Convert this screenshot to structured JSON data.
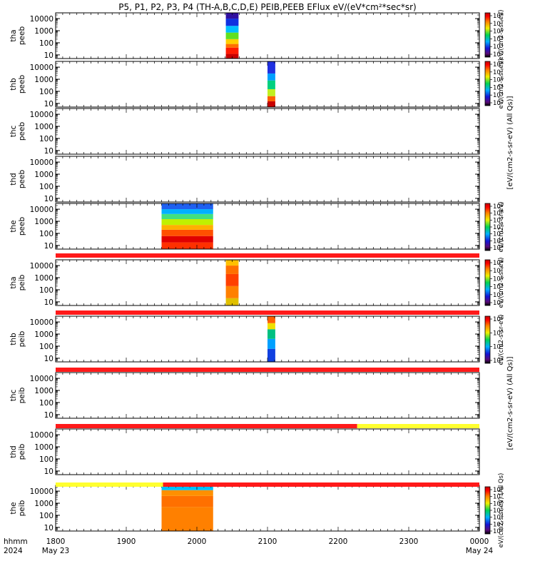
{
  "title": "P5, P1, P2, P3, P4 (TH-A,B,C,D,E) PEIB,PEEB EFlux eV/(eV*cm²*sec*sr)",
  "time_axis": {
    "row1_label": "hhmm",
    "row2_label": "2024",
    "ticks": [
      {
        "t": 1800,
        "label": "1800",
        "sub": "May 23"
      },
      {
        "t": 1900,
        "label": "1900",
        "sub": ""
      },
      {
        "t": 2000,
        "label": "2000",
        "sub": ""
      },
      {
        "t": 2100,
        "label": "2100",
        "sub": ""
      },
      {
        "t": 2200,
        "label": "2200",
        "sub": ""
      },
      {
        "t": 2300,
        "label": "2300",
        "sub": ""
      },
      {
        "t": 2400,
        "label": "0000",
        "sub": "May 24"
      }
    ]
  },
  "colorbars": [
    {
      "panel": "tha-peeb",
      "ticks": [
        "10^8",
        "10^7",
        "10^6",
        "10^5",
        "10^4",
        "10^3"
      ],
      "label": "eV/(cm2-s-sr-eV)"
    },
    {
      "panel": "thb-peeb",
      "ticks": [
        "10^8",
        "10^7",
        "10^6",
        "10^5",
        "10^4",
        "10^3"
      ],
      "label": "eV/(cm2-s-sr-eV)"
    },
    {
      "panel": "the-peeb",
      "ticks": [
        "10^9",
        "10^8",
        "10^7",
        "10^6",
        "10^5",
        "10^4",
        "10^3"
      ],
      "label": "eV/(cm2-s-sr-eV)"
    },
    {
      "panel": "tha-peib",
      "ticks": [
        "10^8",
        "10^7",
        "10^6",
        "10^5",
        "10^4",
        "10^3"
      ],
      "label": "eV/(cm2-s-sr-eV)"
    },
    {
      "panel": "thb-peib",
      "ticks": [
        "10^6",
        "10^5",
        "10^4",
        "10^3"
      ],
      "label": "eV/(cm2-s-sr-eV)"
    },
    {
      "panel": "the-peib",
      "ticks": [
        "10^8",
        "10^7",
        "10^6",
        "10^5",
        "10^4",
        "10^3",
        "10^2"
      ],
      "label": "eV/(cm2-s-sr-eV) (All Qs)"
    }
  ],
  "side_labels": [
    "[eV/(cm2-s-sr-eV) (All Qs)]",
    "[eV/(cm2-s-sr-eV) (All Qs)]"
  ],
  "flag_bars": [
    {
      "after_panel": "the-peeb",
      "segments": [
        {
          "from": 1800,
          "to": 2400,
          "color": "#ff1a1a"
        }
      ]
    },
    {
      "after_panel": "tha-peib",
      "segments": [
        {
          "from": 1800,
          "to": 2400,
          "color": "#ff1a1a"
        }
      ]
    },
    {
      "after_panel": "thb-peib",
      "segments": [
        {
          "from": 1800,
          "to": 2400,
          "color": "#ff1a1a"
        }
      ]
    },
    {
      "after_panel": "thc-peib",
      "segments": [
        {
          "from": 1800,
          "to": 2227,
          "color": "#ff1a1a"
        },
        {
          "from": 2227,
          "to": 2400,
          "color": "#ffff30"
        }
      ]
    },
    {
      "after_panel": "thd-peib",
      "segments": [
        {
          "from": 1800,
          "to": 1952,
          "color": "#ffff30"
        },
        {
          "from": 1952,
          "to": 2400,
          "color": "#ff1a1a"
        }
      ]
    }
  ],
  "chart_data": {
    "type": "heatmap",
    "title": "P5, P1, P2, P3, P4 (TH-A,B,C,D,E) PEIB,PEEB EFlux eV/(eV*cm²*sec*sr)",
    "x_range": [
      1800,
      2400
    ],
    "y_scale": "log",
    "y_tick_labels": [
      "10",
      "100",
      "1000",
      "10000"
    ],
    "panels": [
      {
        "probe": "tha",
        "instrument": "peeb",
        "label1": "tha",
        "label2": "peeb",
        "data_intervals": [
          {
            "from": 2041,
            "to": 2059
          }
        ],
        "profile": "electron-a"
      },
      {
        "probe": "thb",
        "instrument": "peeb",
        "label1": "thb",
        "label2": "peeb",
        "data_intervals": [
          {
            "from": 2100,
            "to": 2111
          }
        ],
        "profile": "electron-b"
      },
      {
        "probe": "thc",
        "instrument": "peeb",
        "label1": "thc",
        "label2": "peeb",
        "data_intervals": [],
        "profile": "none"
      },
      {
        "probe": "thd",
        "instrument": "peeb",
        "label1": "thd",
        "label2": "peeb",
        "data_intervals": [],
        "profile": "none"
      },
      {
        "probe": "the",
        "instrument": "peeb",
        "label1": "the",
        "label2": "peeb",
        "data_intervals": [
          {
            "from": 1950,
            "to": 2023
          }
        ],
        "profile": "electron-e"
      },
      {
        "probe": "tha",
        "instrument": "peib",
        "label1": "tha",
        "label2": "peib",
        "data_intervals": [
          {
            "from": 2041,
            "to": 2059
          }
        ],
        "profile": "ion-a"
      },
      {
        "probe": "thb",
        "instrument": "peib",
        "label1": "thb",
        "label2": "peib",
        "data_intervals": [
          {
            "from": 2100,
            "to": 2111
          }
        ],
        "profile": "ion-b"
      },
      {
        "probe": "thc",
        "instrument": "peib",
        "label1": "thc",
        "label2": "peib",
        "data_intervals": [],
        "profile": "none"
      },
      {
        "probe": "thd",
        "instrument": "peib",
        "label1": "thd",
        "label2": "peib",
        "data_intervals": [],
        "profile": "none"
      },
      {
        "probe": "the",
        "instrument": "peib",
        "label1": "the",
        "label2": "peib",
        "data_intervals": [
          {
            "from": 1950,
            "to": 2023
          }
        ],
        "profile": "ion-e"
      }
    ]
  }
}
